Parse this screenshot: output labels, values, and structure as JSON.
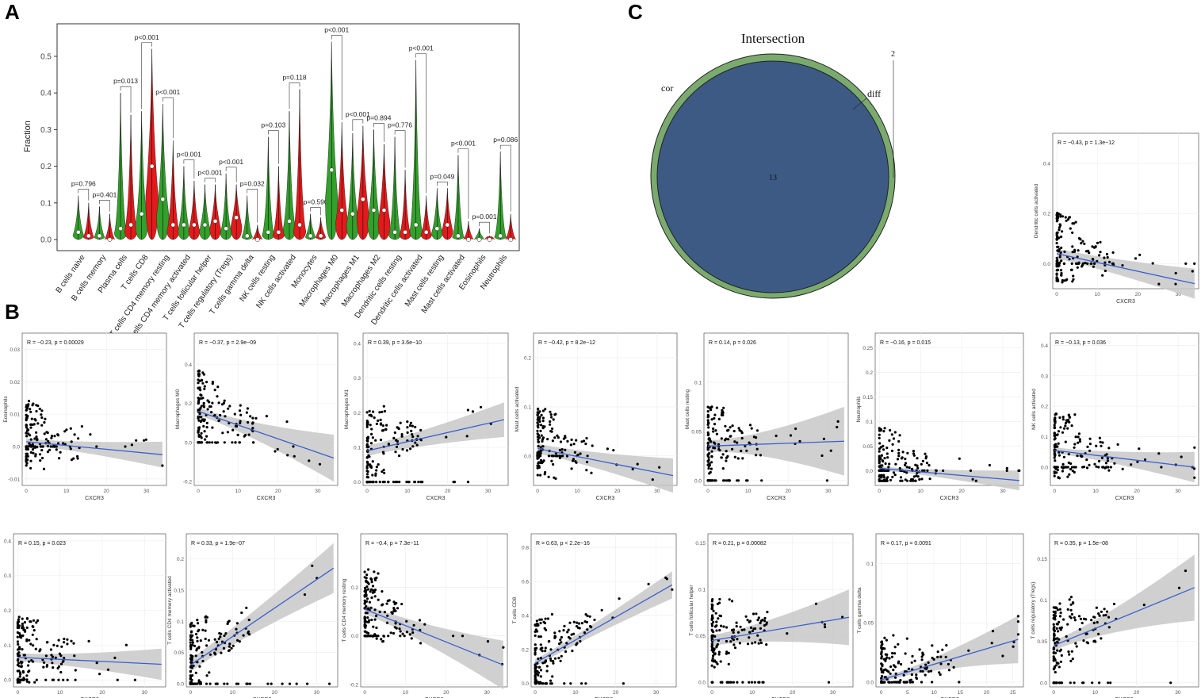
{
  "panels": {
    "a": "A",
    "b": "B",
    "c": "C"
  },
  "colors": {
    "green": "#33a02c",
    "red": "#e31a1c",
    "fit": "#3a5fcd",
    "band": "#c8c8c8",
    "venn_outer": "#7aaa6e",
    "venn_inner": "#3d5a85"
  },
  "chart_data": [
    {
      "type": "violin",
      "id": "A",
      "ylabel": "Fraction",
      "ylim": [
        0,
        0.6
      ],
      "yticks": [
        0.0,
        0.1,
        0.2,
        0.3,
        0.4,
        0.5
      ],
      "categories": [
        "B cells naive",
        "B cells memory",
        "Plasma cells",
        "T cells CD8",
        "T cells CD4 memory resting",
        "T cells CD4 memory activated",
        "T cells follicular helper",
        "T cells regulatory (Tregs)",
        "T cells gamma delta",
        "NK cells resting",
        "NK cells activated",
        "Monocytes",
        "Macrophages M0",
        "Macrophages M1",
        "Macrophages M2",
        "Dendritic cells resting",
        "Dendritic cells activated",
        "Mast cells resting",
        "Mast cells activated",
        "Eosinophils",
        "Neutrophils"
      ],
      "pvalues": [
        "p=0.796",
        "p=0.401",
        "p=0.013",
        "p<0.001",
        "p<0.001",
        "p<0.001",
        "p<0.001",
        "p<0.001",
        "p=0.032",
        "p=0.103",
        "p=0.118",
        "p=0.590",
        "p<0.001",
        "p<0.001",
        "p=0.894",
        "p=0.776",
        "p<0.001",
        "p=0.049",
        "p<0.001",
        "p=0.001",
        "p=0.086"
      ],
      "series": [
        {
          "name": "group1",
          "color": "green",
          "max": [
            0.12,
            0.09,
            0.4,
            0.35,
            0.37,
            0.2,
            0.15,
            0.18,
            0.12,
            0.28,
            0.35,
            0.07,
            0.54,
            0.29,
            0.3,
            0.28,
            0.49,
            0.14,
            0.23,
            0.03,
            0.24
          ],
          "median": [
            0.02,
            0.01,
            0.03,
            0.07,
            0.11,
            0.04,
            0.04,
            0.03,
            0.01,
            0.02,
            0.05,
            0.01,
            0.19,
            0.07,
            0.08,
            0.02,
            0.04,
            0.03,
            0.01,
            0.0,
            0.01
          ]
        },
        {
          "name": "group2",
          "color": "red",
          "max": [
            0.1,
            0.07,
            0.34,
            0.52,
            0.27,
            0.16,
            0.15,
            0.15,
            0.04,
            0.2,
            0.41,
            0.06,
            0.32,
            0.31,
            0.26,
            0.19,
            0.12,
            0.14,
            0.05,
            0.01,
            0.07
          ],
          "median": [
            0.01,
            0.0,
            0.04,
            0.2,
            0.04,
            0.04,
            0.05,
            0.06,
            0.0,
            0.02,
            0.04,
            0.01,
            0.08,
            0.11,
            0.08,
            0.02,
            0.02,
            0.04,
            0.0,
            0.0,
            0.0
          ]
        }
      ]
    },
    {
      "type": "venn",
      "id": "C",
      "title": "Intersection",
      "sets": [
        {
          "name": "cor",
          "size": 15
        },
        {
          "name": "diff",
          "size": 13
        }
      ],
      "only_cor": "2",
      "intersection": "13"
    },
    {
      "type": "scatter_grid",
      "id": "B",
      "xlabel": "CXCR3",
      "plots": [
        {
          "ylabel": "Dendritic cells activated",
          "r": "R = −0.43, p = 1.3e−12",
          "ylim": [
            -0.1,
            0.52
          ],
          "yticks": [
            0.0,
            0.2,
            0.4
          ],
          "xlim": [
            -1,
            35
          ],
          "xticks": [
            0,
            10,
            20,
            30
          ],
          "fit": [
            0.04,
            -0.08
          ],
          "band": [
            0.02,
            0.06
          ]
        },
        {
          "ylabel": "Eosinophils",
          "r": "R = −0.23, p = 0.00029",
          "ylim": [
            -0.012,
            0.035
          ],
          "yticks": [
            -0.01,
            0.0,
            0.01,
            0.02,
            0.03
          ],
          "xlim": [
            -1,
            35
          ],
          "xticks": [
            0,
            10,
            20,
            30
          ],
          "fit": [
            0.0015,
            -0.0025
          ],
          "band": [
            0.001,
            0.004
          ]
        },
        {
          "ylabel": "Macrophages M0",
          "r": "R = −0.37, p = 2.9e−09",
          "ylim": [
            -0.22,
            0.56
          ],
          "yticks": [
            -0.2,
            0.0,
            0.2,
            0.4
          ],
          "xlim": [
            -1,
            35
          ],
          "xticks": [
            0,
            10,
            20,
            30
          ],
          "fit": [
            0.16,
            -0.08
          ],
          "band": [
            0.02,
            0.12
          ]
        },
        {
          "ylabel": "Macrophages M1",
          "r": "R = 0.39, p = 3.6e−10",
          "ylim": [
            -0.01,
            0.43
          ],
          "yticks": [
            0.0,
            0.1,
            0.2,
            0.3,
            0.4
          ],
          "xlim": [
            -1,
            35
          ],
          "xticks": [
            0,
            10,
            20,
            30
          ],
          "fit": [
            0.09,
            0.18
          ],
          "band": [
            0.015,
            0.05
          ]
        },
        {
          "ylabel": "Mast cells activated",
          "r": "R = −0.42, p = 8.2e−12",
          "ylim": [
            -0.06,
            0.25
          ],
          "yticks": [
            0.0,
            0.1,
            0.2
          ],
          "xlim": [
            -1,
            35
          ],
          "xticks": [
            0,
            10,
            20,
            30
          ],
          "fit": [
            0.015,
            -0.04
          ],
          "band": [
            0.01,
            0.035
          ]
        },
        {
          "ylabel": "Mast cells resting",
          "r": "R = 0.14, p = 0.026",
          "ylim": [
            -0.005,
            0.15
          ],
          "yticks": [
            0.0,
            0.05,
            0.1
          ],
          "xlim": [
            -1,
            35
          ],
          "xticks": [
            0,
            10,
            20,
            30
          ],
          "fit": [
            0.035,
            0.04
          ],
          "band": [
            0.006,
            0.035
          ]
        },
        {
          "ylabel": "Neutrophils",
          "r": "R = −0.16, p = 0.015",
          "ylim": [
            -0.03,
            0.28
          ],
          "yticks": [
            0.0,
            0.05,
            0.1,
            0.15,
            0.2,
            0.25
          ],
          "xlim": [
            -1,
            35
          ],
          "xticks": [
            0,
            10,
            20,
            30
          ],
          "fit": [
            0.005,
            -0.02
          ],
          "band": [
            0.004,
            0.02
          ]
        },
        {
          "ylabel": "NK cells activated",
          "r": "R = −0.13, p = 0.036",
          "ylim": [
            -0.06,
            0.44
          ],
          "yticks": [
            0.0,
            0.1,
            0.2,
            0.3,
            0.4
          ],
          "xlim": [
            -1,
            35
          ],
          "xticks": [
            0,
            10,
            20,
            30
          ],
          "fit": [
            0.055,
            0.0
          ],
          "band": [
            0.01,
            0.05
          ]
        },
        {
          "ylabel": "Plasma cells",
          "r": "R = 0.15, p = 0.023",
          "ylim": [
            -0.02,
            0.42
          ],
          "yticks": [
            0.0,
            0.1,
            0.2,
            0.3,
            0.4
          ],
          "xlim": [
            -1,
            35
          ],
          "xticks": [
            0,
            10,
            20,
            30
          ],
          "fit": [
            0.065,
            0.045
          ],
          "band": [
            0.012,
            0.045
          ]
        },
        {
          "ylabel": "T cells CD4 memory activated",
          "r": "R = 0.33, p = 1.9e−07",
          "ylim": [
            -0.005,
            0.24
          ],
          "yticks": [
            0.0,
            0.05,
            0.1,
            0.15,
            0.2
          ],
          "xlim": [
            -1,
            35
          ],
          "xticks": [
            0,
            10,
            20,
            30
          ],
          "fit": [
            0.03,
            0.185
          ],
          "band": [
            0.01,
            0.04
          ]
        },
        {
          "ylabel": "T cells CD4 memory resting",
          "r": "R = −0.4, p = 7.3e−11",
          "ylim": [
            -0.21,
            0.42
          ],
          "yticks": [
            -0.2,
            0.0,
            0.2
          ],
          "xlim": [
            -1,
            35
          ],
          "xticks": [
            0,
            10,
            20,
            30
          ],
          "fit": [
            0.11,
            -0.12
          ],
          "band": [
            0.02,
            0.1
          ]
        },
        {
          "ylabel": "T cells CD8",
          "r": "R = 0.63, p < 2.2e−16",
          "ylim": [
            -0.02,
            0.88
          ],
          "yticks": [
            0.0,
            0.2,
            0.4,
            0.6,
            0.8
          ],
          "xlim": [
            -1,
            35
          ],
          "xticks": [
            0,
            10,
            20,
            30
          ],
          "fit": [
            0.12,
            0.58
          ],
          "band": [
            0.02,
            0.08
          ]
        },
        {
          "ylabel": "T cells follicular helper",
          "r": "R = 0.21, p = 0.00082",
          "ylim": [
            -0.005,
            0.16
          ],
          "yticks": [
            0.0,
            0.05,
            0.1,
            0.15
          ],
          "xlim": [
            -1,
            35
          ],
          "xticks": [
            0,
            10,
            20,
            30
          ],
          "fit": [
            0.045,
            0.07
          ],
          "band": [
            0.006,
            0.03
          ]
        },
        {
          "ylabel": "T cells gamma delta",
          "r": "R = 0.17, p = 0.0091",
          "ylim": [
            -0.004,
            0.125
          ],
          "yticks": [
            0.0,
            0.05,
            0.1
          ],
          "xlim": [
            -1,
            27
          ],
          "xticks": [
            0,
            5,
            10,
            15,
            20,
            25
          ],
          "fit": [
            0.002,
            0.036
          ],
          "band": [
            0.002,
            0.02
          ]
        },
        {
          "ylabel": "T cells regulatory (Tregs)",
          "r": "R = 0.35, p = 1.5e−08",
          "ylim": [
            -0.005,
            0.18
          ],
          "yticks": [
            0.0,
            0.05,
            0.1,
            0.15
          ],
          "xlim": [
            -1,
            35
          ],
          "xticks": [
            0,
            10,
            20,
            30
          ],
          "fit": [
            0.045,
            0.115
          ],
          "band": [
            0.006,
            0.04
          ]
        }
      ]
    }
  ]
}
